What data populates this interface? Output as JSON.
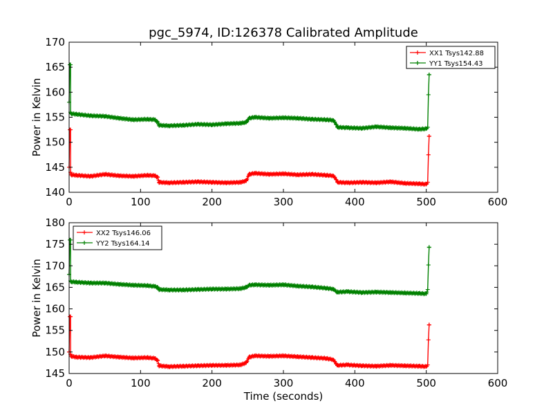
{
  "chart_data": [
    {
      "type": "line",
      "title": "pgc_5974, ID:126378 Calibrated Amplitude",
      "xlabel": "",
      "ylabel": "Power in Kelvin",
      "xlim": [
        0,
        600
      ],
      "ylim": [
        140,
        170
      ],
      "xticks": [
        "0",
        "100",
        "200",
        "300",
        "400",
        "500",
        "600"
      ],
      "yticks": [
        "140",
        "145",
        "150",
        "155",
        "160",
        "165",
        "170"
      ],
      "legend_position": "top-right",
      "series": [
        {
          "name": "XX1 Tsys142.88",
          "color": "#ff0000",
          "x": [
            0,
            1,
            2,
            2,
            3,
            10,
            30,
            50,
            70,
            90,
            110,
            120,
            124,
            126,
            140,
            160,
            180,
            200,
            220,
            240,
            248,
            252,
            260,
            280,
            300,
            320,
            340,
            360,
            370,
            374,
            376,
            390,
            410,
            430,
            450,
            470,
            490,
            500,
            502,
            503,
            504,
            504
          ],
          "y": [
            145,
            152.5,
            152.5,
            144,
            143.5,
            143.4,
            143.2,
            143.6,
            143.3,
            143.2,
            143.4,
            143.3,
            143,
            142,
            141.9,
            142,
            142.1,
            142,
            141.9,
            142,
            142.3,
            143.6,
            143.8,
            143.6,
            143.7,
            143.5,
            143.6,
            143.4,
            143.3,
            142.5,
            142,
            141.9,
            142,
            141.9,
            142.1,
            141.8,
            141.7,
            141.6,
            142,
            147.5,
            151.2,
            151.2
          ]
        },
        {
          "name": "YY1 Tsys154.43",
          "color": "#008000",
          "x": [
            0,
            1,
            2,
            2,
            3,
            10,
            30,
            50,
            70,
            90,
            110,
            120,
            124,
            126,
            140,
            160,
            180,
            200,
            220,
            240,
            248,
            252,
            260,
            280,
            300,
            320,
            340,
            360,
            370,
            374,
            376,
            390,
            410,
            430,
            450,
            470,
            490,
            500,
            502,
            503,
            504,
            504
          ],
          "y": [
            158,
            165.5,
            165.5,
            156,
            155.7,
            155.6,
            155.3,
            155.2,
            154.8,
            154.5,
            154.6,
            154.5,
            154,
            153.4,
            153.3,
            153.4,
            153.6,
            153.5,
            153.7,
            153.8,
            154,
            154.8,
            155,
            154.8,
            154.9,
            154.8,
            154.6,
            154.5,
            154.4,
            153.5,
            153,
            152.9,
            152.8,
            153.1,
            152.9,
            152.8,
            152.6,
            152.7,
            153,
            159.5,
            163.5,
            163.5
          ]
        }
      ]
    },
    {
      "type": "line",
      "title": "",
      "xlabel": "Time (seconds)",
      "ylabel": "Power in Kelvin",
      "xlim": [
        0,
        600
      ],
      "ylim": [
        145,
        180
      ],
      "xticks": [
        "0",
        "100",
        "200",
        "300",
        "400",
        "500",
        "600"
      ],
      "yticks": [
        "145",
        "150",
        "155",
        "160",
        "165",
        "170",
        "175",
        "180"
      ],
      "legend_position": "top-left",
      "series": [
        {
          "name": "XX2 Tsys146.06",
          "color": "#ff0000",
          "x": [
            0,
            1,
            2,
            2,
            3,
            10,
            30,
            50,
            70,
            90,
            110,
            120,
            124,
            126,
            140,
            160,
            180,
            200,
            220,
            240,
            248,
            252,
            260,
            280,
            300,
            320,
            340,
            360,
            370,
            374,
            376,
            390,
            410,
            430,
            450,
            470,
            490,
            500,
            502,
            503,
            504,
            504
          ],
          "y": [
            150,
            158.2,
            158.2,
            149.5,
            149,
            148.8,
            148.7,
            149.1,
            148.8,
            148.6,
            148.7,
            148.5,
            148,
            146.8,
            146.6,
            146.7,
            146.8,
            146.9,
            146.9,
            147,
            147.5,
            148.8,
            149.1,
            149,
            149.1,
            148.9,
            148.7,
            148.5,
            148.2,
            147.2,
            146.9,
            147,
            146.8,
            146.7,
            146.9,
            146.8,
            146.7,
            146.6,
            147,
            152.8,
            156.3,
            156.3
          ]
        },
        {
          "name": "YY2 Tsys164.14",
          "color": "#008000",
          "x": [
            0,
            1,
            2,
            2,
            3,
            10,
            30,
            50,
            70,
            90,
            110,
            120,
            124,
            126,
            140,
            160,
            180,
            200,
            220,
            240,
            248,
            252,
            260,
            280,
            300,
            320,
            340,
            360,
            370,
            374,
            376,
            390,
            410,
            430,
            450,
            470,
            490,
            500,
            502,
            503,
            504,
            504
          ],
          "y": [
            168,
            176,
            176,
            166.5,
            166.3,
            166.2,
            166,
            166,
            165.7,
            165.5,
            165.4,
            165.2,
            165,
            164.5,
            164.4,
            164.4,
            164.5,
            164.6,
            164.6,
            164.7,
            165,
            165.5,
            165.6,
            165.5,
            165.6,
            165.3,
            165.1,
            164.8,
            164.6,
            164,
            163.9,
            164,
            163.8,
            163.9,
            163.8,
            163.7,
            163.6,
            163.5,
            164.5,
            170.2,
            174.3,
            174.3
          ]
        }
      ]
    }
  ]
}
